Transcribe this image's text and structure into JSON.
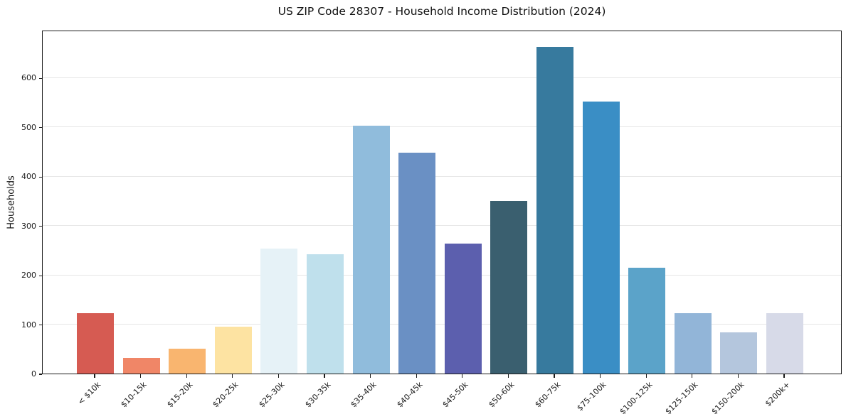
{
  "chart_data": {
    "type": "bar",
    "title": "US ZIP Code 28307 - Household Income Distribution (2024)",
    "xlabel": "",
    "ylabel": "Households",
    "ylim": [
      0,
      697
    ],
    "yticks": [
      0,
      100,
      200,
      300,
      400,
      500,
      600
    ],
    "grid": "horizontal-light",
    "legend": "none",
    "categories": [
      "< $10k",
      "$10-15k",
      "$15-20k",
      "$20-25k",
      "$25-30k",
      "$30-35k",
      "$35-40k",
      "$40-45k",
      "$45-50k",
      "$50-60k",
      "$60-75k",
      "$75-100k",
      "$100-125k",
      "$125-150k",
      "$150-200k",
      "$200k+"
    ],
    "values": [
      122,
      32,
      51,
      95,
      254,
      242,
      503,
      448,
      263,
      350,
      663,
      552,
      214,
      122,
      84,
      122
    ],
    "bar_colors": [
      "#d65b52",
      "#f08667",
      "#f9b56f",
      "#fde3a2",
      "#e6f2f7",
      "#bfe0ec",
      "#90bcdc",
      "#6a90c4",
      "#5c5fae",
      "#3a5f6f",
      "#377a9e",
      "#3a8ec5",
      "#5ba3c9",
      "#92b5d8",
      "#b4c6dd",
      "#d7dae8"
    ],
    "grid_color": "#e7e7e7",
    "axis_color": "#1c1c1c"
  }
}
